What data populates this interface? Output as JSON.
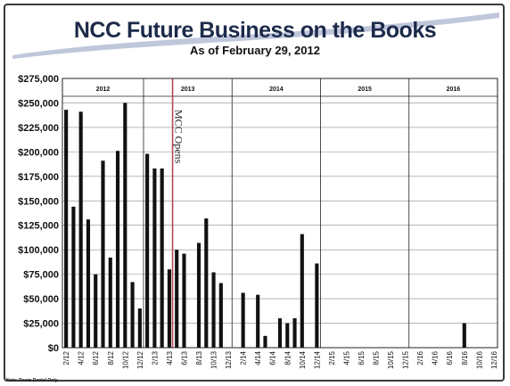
{
  "colors": {
    "bar": "#111111",
    "marker": "#b5475a",
    "title": "#1c2a4a",
    "swoosh": "#8a99bd"
  },
  "chart_data": {
    "type": "bar",
    "title": "NCC Future Business on the Books",
    "subtitle": "As of February 29, 2012",
    "note": "Note: Room Rental Only",
    "ylim": [
      0,
      275000
    ],
    "y_ticks": [
      "$0",
      "$25,000",
      "$50,000",
      "$75,000",
      "$100,000",
      "$125,000",
      "$150,000",
      "$175,000",
      "$200,000",
      "$225,000",
      "$250,000",
      "$275,000"
    ],
    "years": [
      "2012",
      "2013",
      "2014",
      "2015",
      "2016"
    ],
    "x_tick_labels": [
      "2/12",
      "4/12",
      "6/12",
      "8/12",
      "10/12",
      "12/12",
      "2/13",
      "4/13",
      "6/13",
      "8/13",
      "10/13",
      "12/13",
      "2/14",
      "4/14",
      "6/14",
      "8/14",
      "10/14",
      "12/14",
      "2/15",
      "4/15",
      "6/15",
      "8/15",
      "10/15",
      "12/15",
      "2/16",
      "4/16",
      "6/16",
      "8/16",
      "10/16",
      "12/16"
    ],
    "annotation": "MCC Opens",
    "categories": [
      "2/12",
      "3/12",
      "4/12",
      "5/12",
      "6/12",
      "7/12",
      "8/12",
      "9/12",
      "10/12",
      "11/12",
      "12/12",
      "1/13",
      "2/13",
      "3/13",
      "4/13",
      "5/13",
      "6/13",
      "7/13",
      "8/13",
      "9/13",
      "10/13",
      "11/13",
      "12/13",
      "1/14",
      "2/14",
      "3/14",
      "4/14",
      "5/14",
      "6/14",
      "7/14",
      "8/14",
      "9/14",
      "10/14",
      "11/14",
      "12/14",
      "1/15",
      "2/15",
      "3/15",
      "4/15",
      "5/15",
      "6/15",
      "7/15",
      "8/15",
      "9/15",
      "10/15",
      "11/15",
      "12/15",
      "1/16",
      "2/16",
      "3/16",
      "4/16",
      "5/16",
      "6/16",
      "7/16",
      "8/16",
      "9/16",
      "10/16",
      "11/16",
      "12/16"
    ],
    "values": [
      243000,
      144000,
      241000,
      131000,
      75000,
      191000,
      92000,
      201000,
      250000,
      67000,
      40000,
      198000,
      183000,
      183000,
      80000,
      100000,
      96000,
      0,
      107000,
      132000,
      77000,
      66000,
      0,
      0,
      56000,
      0,
      54000,
      12000,
      0,
      30000,
      25000,
      30000,
      116000,
      0,
      86000,
      0,
      0,
      0,
      0,
      0,
      0,
      0,
      0,
      0,
      0,
      0,
      0,
      0,
      0,
      0,
      0,
      0,
      0,
      0,
      25000,
      0,
      0,
      0,
      0
    ]
  }
}
